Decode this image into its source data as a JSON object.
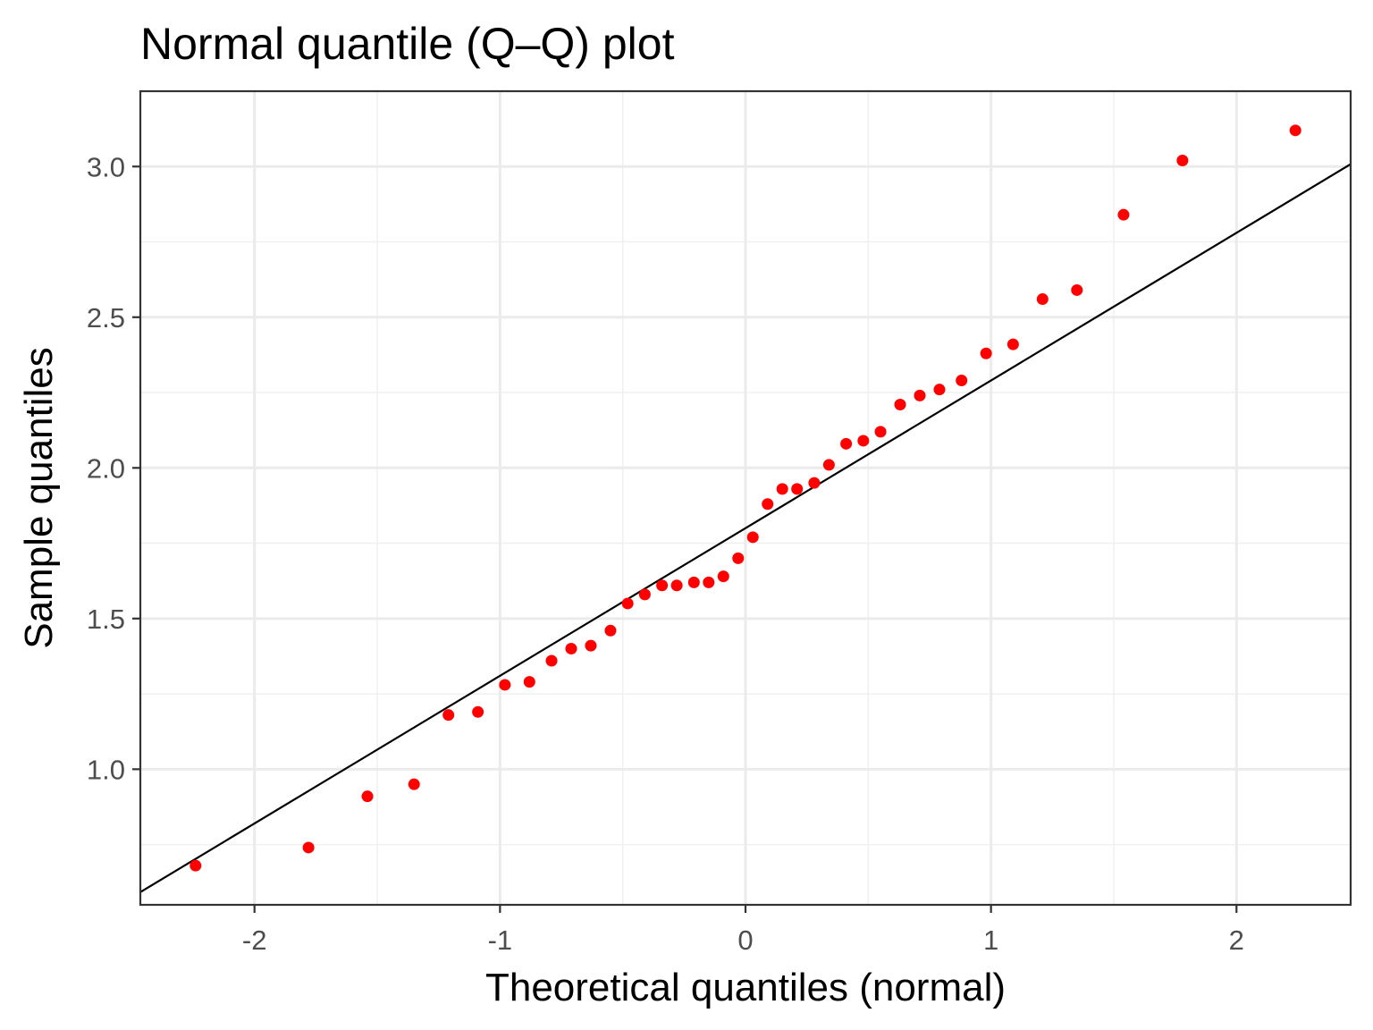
{
  "chart_data": {
    "type": "scatter",
    "title": "Normal quantile (Q–Q) plot",
    "xlabel": "Theoretical quantiles (normal)",
    "ylabel": "Sample quantiles",
    "xlim": [
      -2.465,
      2.465
    ],
    "ylim": [
      0.55,
      3.25
    ],
    "x_ticks": [
      -2,
      -1,
      0,
      1,
      2
    ],
    "x_tick_labels": [
      "-2",
      "-1",
      "0",
      "1",
      "2"
    ],
    "y_ticks": [
      1.0,
      1.5,
      2.0,
      2.5,
      3.0
    ],
    "y_tick_labels": [
      "1.0",
      "1.5",
      "2.0",
      "2.5",
      "3.0"
    ],
    "grid": true,
    "theme": "bw",
    "point_color": "#ff0000",
    "line_color": "#000000",
    "reference_line": {
      "intercept": 1.8,
      "slope": 0.49
    },
    "series": [
      {
        "points": [
          [
            -2.24,
            0.68
          ],
          [
            -1.78,
            0.74
          ],
          [
            -1.54,
            0.91
          ],
          [
            -1.35,
            0.95
          ],
          [
            -1.21,
            1.18
          ],
          [
            -1.09,
            1.19
          ],
          [
            -0.98,
            1.28
          ],
          [
            -0.88,
            1.29
          ],
          [
            -0.79,
            1.36
          ],
          [
            -0.71,
            1.4
          ],
          [
            -0.63,
            1.41
          ],
          [
            -0.55,
            1.46
          ],
          [
            -0.48,
            1.55
          ],
          [
            -0.41,
            1.58
          ],
          [
            -0.34,
            1.61
          ],
          [
            -0.28,
            1.61
          ],
          [
            -0.21,
            1.62
          ],
          [
            -0.15,
            1.62
          ],
          [
            -0.09,
            1.64
          ],
          [
            -0.03,
            1.7
          ],
          [
            0.03,
            1.77
          ],
          [
            0.09,
            1.88
          ],
          [
            0.15,
            1.93
          ],
          [
            0.21,
            1.93
          ],
          [
            0.28,
            1.95
          ],
          [
            0.34,
            2.01
          ],
          [
            0.41,
            2.08
          ],
          [
            0.48,
            2.09
          ],
          [
            0.55,
            2.12
          ],
          [
            0.63,
            2.21
          ],
          [
            0.71,
            2.24
          ],
          [
            0.79,
            2.26
          ],
          [
            0.88,
            2.29
          ],
          [
            0.98,
            2.38
          ],
          [
            1.09,
            2.41
          ],
          [
            1.21,
            2.56
          ],
          [
            1.35,
            2.59
          ],
          [
            1.54,
            2.84
          ],
          [
            1.78,
            3.02
          ],
          [
            2.24,
            3.12
          ]
        ]
      }
    ]
  }
}
